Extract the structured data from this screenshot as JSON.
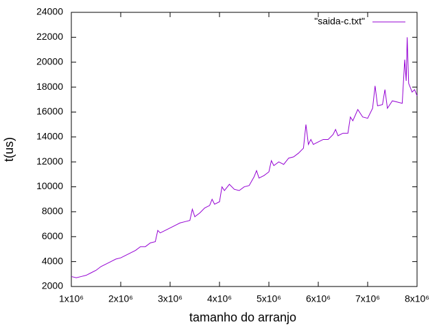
{
  "chart_data": {
    "type": "line",
    "xlabel": "tamanho do arranjo",
    "ylabel": "t(us)",
    "x": [
      1000000,
      1100000,
      1200000,
      1300000,
      1400000,
      1500000,
      1600000,
      1700000,
      1800000,
      1900000,
      2000000,
      2100000,
      2200000,
      2300000,
      2400000,
      2500000,
      2600000,
      2700000,
      2750000,
      2800000,
      2900000,
      3000000,
      3100000,
      3200000,
      3300000,
      3400000,
      3450000,
      3500000,
      3600000,
      3700000,
      3800000,
      3850000,
      3900000,
      4000000,
      4050000,
      4100000,
      4200000,
      4300000,
      4400000,
      4500000,
      4600000,
      4700000,
      4750000,
      4800000,
      4900000,
      5000000,
      5050000,
      5100000,
      5200000,
      5300000,
      5400000,
      5500000,
      5600000,
      5700000,
      5750000,
      5800000,
      5850000,
      5900000,
      6000000,
      6100000,
      6200000,
      6300000,
      6350000,
      6400000,
      6500000,
      6600000,
      6650000,
      6700000,
      6800000,
      6900000,
      7000000,
      7100000,
      7150000,
      7200000,
      7300000,
      7350000,
      7400000,
      7500000,
      7600000,
      7700000,
      7750000,
      7780000,
      7800000,
      7830000,
      7900000,
      7950000,
      8000000
    ],
    "series": [
      {
        "name": "\"saida-c.txt\"",
        "color": "#9400d3",
        "values": [
          2800,
          2700,
          2800,
          2900,
          3100,
          3300,
          3600,
          3800,
          4000,
          4200,
          4300,
          4500,
          4700,
          4900,
          5200,
          5200,
          5500,
          5600,
          6500,
          6300,
          6500,
          6700,
          6900,
          7100,
          7200,
          7300,
          8200,
          7600,
          7900,
          8300,
          8500,
          9000,
          8600,
          8800,
          10000,
          9700,
          10200,
          9800,
          9700,
          10000,
          10100,
          10800,
          11300,
          10700,
          10900,
          11200,
          12100,
          11700,
          12000,
          11800,
          12300,
          12400,
          12700,
          13100,
          15000,
          13400,
          13800,
          13400,
          13600,
          13800,
          13800,
          14200,
          14600,
          14100,
          14300,
          14300,
          15600,
          15300,
          16200,
          15600,
          15500,
          16300,
          18100,
          16500,
          16600,
          17800,
          16300,
          16900,
          16800,
          16700,
          20200,
          18500,
          22000,
          18300,
          17600,
          17800,
          17300
        ]
      }
    ],
    "xlim": [
      1000000,
      8000000
    ],
    "xticks": [
      {
        "value": 1000000,
        "label": "1x10⁶"
      },
      {
        "value": 2000000,
        "label": "2x10⁶"
      },
      {
        "value": 3000000,
        "label": "3x10⁶"
      },
      {
        "value": 4000000,
        "label": "4x10⁶"
      },
      {
        "value": 5000000,
        "label": "5x10⁶"
      },
      {
        "value": 6000000,
        "label": "6x10⁶"
      },
      {
        "value": 7000000,
        "label": "7x10⁶"
      },
      {
        "value": 8000000,
        "label": "8x10⁶"
      }
    ],
    "ylim": [
      2000,
      24000
    ],
    "yticks": [
      2000,
      4000,
      6000,
      8000,
      10000,
      12000,
      14000,
      16000,
      18000,
      20000,
      22000,
      24000
    ],
    "grid": false,
    "legend": "top-right"
  }
}
